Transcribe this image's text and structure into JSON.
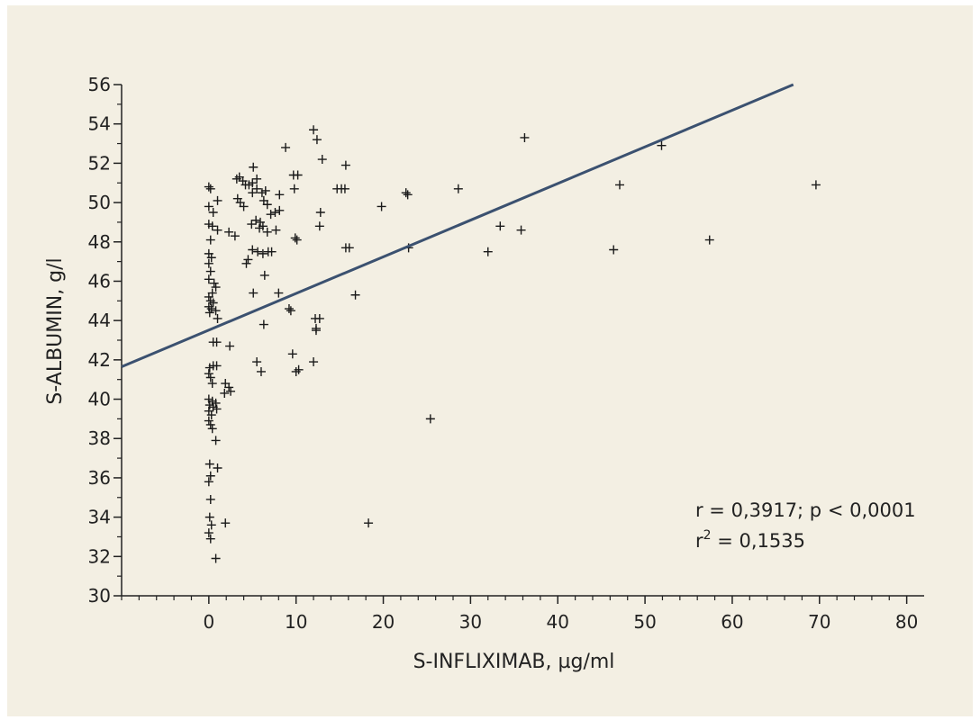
{
  "chart_data": {
    "type": "scatter",
    "title": "",
    "xlabel": "S-INFLIXIMAB, µg/ml",
    "ylabel": "S-ALBUMIN, g/l",
    "xlim": [
      -10,
      82
    ],
    "ylim": [
      30,
      56
    ],
    "xticks": [
      0,
      10,
      20,
      30,
      40,
      50,
      60,
      70,
      80
    ],
    "yticks": [
      30,
      32,
      34,
      36,
      38,
      40,
      42,
      44,
      46,
      48,
      50,
      52,
      54,
      56
    ],
    "marker": "+",
    "colors": {
      "points": "#1a1a1a",
      "regression": "#3b5170",
      "background": "#f3efe3"
    },
    "annotations": {
      "r_text": "r = 0,3917; p < 0,0001",
      "r2_prefix": "r",
      "r2_sup": "2",
      "r2_suffix": " = 0,1535"
    },
    "regression": {
      "x_start": -10,
      "y_start": 41.65,
      "x_end": 67,
      "y_end": 56.0
    },
    "points": [
      [
        0,
        50.8
      ],
      [
        0.2,
        50.7
      ],
      [
        0,
        49.8
      ],
      [
        0.5,
        49.5
      ],
      [
        0,
        48.9
      ],
      [
        0.4,
        48.8
      ],
      [
        0.2,
        48.1
      ],
      [
        0,
        47.4
      ],
      [
        0.3,
        47.2
      ],
      [
        0,
        46.9
      ],
      [
        0.2,
        46.5
      ],
      [
        0,
        46.1
      ],
      [
        0.6,
        45.9
      ],
      [
        0.8,
        45.7
      ],
      [
        0.4,
        45.4
      ],
      [
        0,
        45.2
      ],
      [
        0.2,
        45.0
      ],
      [
        0.5,
        44.9
      ],
      [
        0,
        44.7
      ],
      [
        0.3,
        44.6
      ],
      [
        0.8,
        44.5
      ],
      [
        0.1,
        44.4
      ],
      [
        1.0,
        44.1
      ],
      [
        0.5,
        42.9
      ],
      [
        0.9,
        42.9
      ],
      [
        2.4,
        42.7
      ],
      [
        0.1,
        41.6
      ],
      [
        0.5,
        41.7
      ],
      [
        0.9,
        41.7
      ],
      [
        0,
        41.3
      ],
      [
        0.2,
        41.1
      ],
      [
        0.4,
        40.8
      ],
      [
        1.9,
        40.8
      ],
      [
        2.3,
        40.6
      ],
      [
        1.8,
        40.3
      ],
      [
        2.5,
        40.4
      ],
      [
        0,
        40.0
      ],
      [
        0.4,
        39.9
      ],
      [
        0.8,
        39.8
      ],
      [
        0.1,
        39.7
      ],
      [
        0.5,
        39.6
      ],
      [
        0.9,
        39.5
      ],
      [
        0,
        39.4
      ],
      [
        0.3,
        39.2
      ],
      [
        0,
        38.9
      ],
      [
        0.2,
        38.7
      ],
      [
        0.4,
        38.5
      ],
      [
        0.8,
        37.9
      ],
      [
        0.1,
        36.7
      ],
      [
        1.0,
        36.5
      ],
      [
        0.2,
        36.1
      ],
      [
        0,
        35.8
      ],
      [
        0.2,
        34.9
      ],
      [
        0.1,
        34.0
      ],
      [
        0.3,
        33.6
      ],
      [
        1.9,
        33.7
      ],
      [
        0,
        33.2
      ],
      [
        0.2,
        32.9
      ],
      [
        0.8,
        31.9
      ],
      [
        1.0,
        48.6
      ],
      [
        1.0,
        50.1
      ],
      [
        2.3,
        48.5
      ],
      [
        3.0,
        48.3
      ],
      [
        3.2,
        51.2
      ],
      [
        3.5,
        51.3
      ],
      [
        3.9,
        51.1
      ],
      [
        4.2,
        50.9
      ],
      [
        4.6,
        50.9
      ],
      [
        5.0,
        51.0
      ],
      [
        5.5,
        51.2
      ],
      [
        5.1,
        51.8
      ],
      [
        3.3,
        50.2
      ],
      [
        3.6,
        50.0
      ],
      [
        4.0,
        49.8
      ],
      [
        5.5,
        50.7
      ],
      [
        6.1,
        50.5
      ],
      [
        6.5,
        50.6
      ],
      [
        5.0,
        50.5
      ],
      [
        6.3,
        50.1
      ],
      [
        6.7,
        49.9
      ],
      [
        7.1,
        49.4
      ],
      [
        7.6,
        49.5
      ],
      [
        8.1,
        49.6
      ],
      [
        5.4,
        49.1
      ],
      [
        5.9,
        49.0
      ],
      [
        6.2,
        48.8
      ],
      [
        6.7,
        48.5
      ],
      [
        7.7,
        48.6
      ],
      [
        4.9,
        48.9
      ],
      [
        5.8,
        48.7
      ],
      [
        8.1,
        50.4
      ],
      [
        8.8,
        52.8
      ],
      [
        9.7,
        51.4
      ],
      [
        10.2,
        51.4
      ],
      [
        9.8,
        50.7
      ],
      [
        5.0,
        47.6
      ],
      [
        5.6,
        47.5
      ],
      [
        6.2,
        47.4
      ],
      [
        6.8,
        47.5
      ],
      [
        7.2,
        47.5
      ],
      [
        4.5,
        47.1
      ],
      [
        4.3,
        46.9
      ],
      [
        6.4,
        46.3
      ],
      [
        10.1,
        48.1
      ],
      [
        9.9,
        48.2
      ],
      [
        12.0,
        53.7
      ],
      [
        12.4,
        53.2
      ],
      [
        13.0,
        52.2
      ],
      [
        12.8,
        49.5
      ],
      [
        12.7,
        48.8
      ],
      [
        14.7,
        50.7
      ],
      [
        15.2,
        50.7
      ],
      [
        15.7,
        51.9
      ],
      [
        15.6,
        50.7
      ],
      [
        15.7,
        47.7
      ],
      [
        16.1,
        47.7
      ],
      [
        5.1,
        45.4
      ],
      [
        8.0,
        45.4
      ],
      [
        9.2,
        44.6
      ],
      [
        9.4,
        44.5
      ],
      [
        6.3,
        43.8
      ],
      [
        12.2,
        44.1
      ],
      [
        12.7,
        44.1
      ],
      [
        12.3,
        43.5
      ],
      [
        12.3,
        43.6
      ],
      [
        9.6,
        42.3
      ],
      [
        12.0,
        41.9
      ],
      [
        5.5,
        41.9
      ],
      [
        6.0,
        41.4
      ],
      [
        10.0,
        41.4
      ],
      [
        10.3,
        41.5
      ],
      [
        16.8,
        45.3
      ],
      [
        19.8,
        49.8
      ],
      [
        22.6,
        50.5
      ],
      [
        22.8,
        50.4
      ],
      [
        22.9,
        47.7
      ],
      [
        25.4,
        39.0
      ],
      [
        18.3,
        33.7
      ],
      [
        28.6,
        50.7
      ],
      [
        32.0,
        47.5
      ],
      [
        33.4,
        48.8
      ],
      [
        35.8,
        48.6
      ],
      [
        36.2,
        53.3
      ],
      [
        46.4,
        47.6
      ],
      [
        47.1,
        50.9
      ],
      [
        51.9,
        52.9
      ],
      [
        57.4,
        48.1
      ],
      [
        69.6,
        50.9
      ]
    ]
  }
}
